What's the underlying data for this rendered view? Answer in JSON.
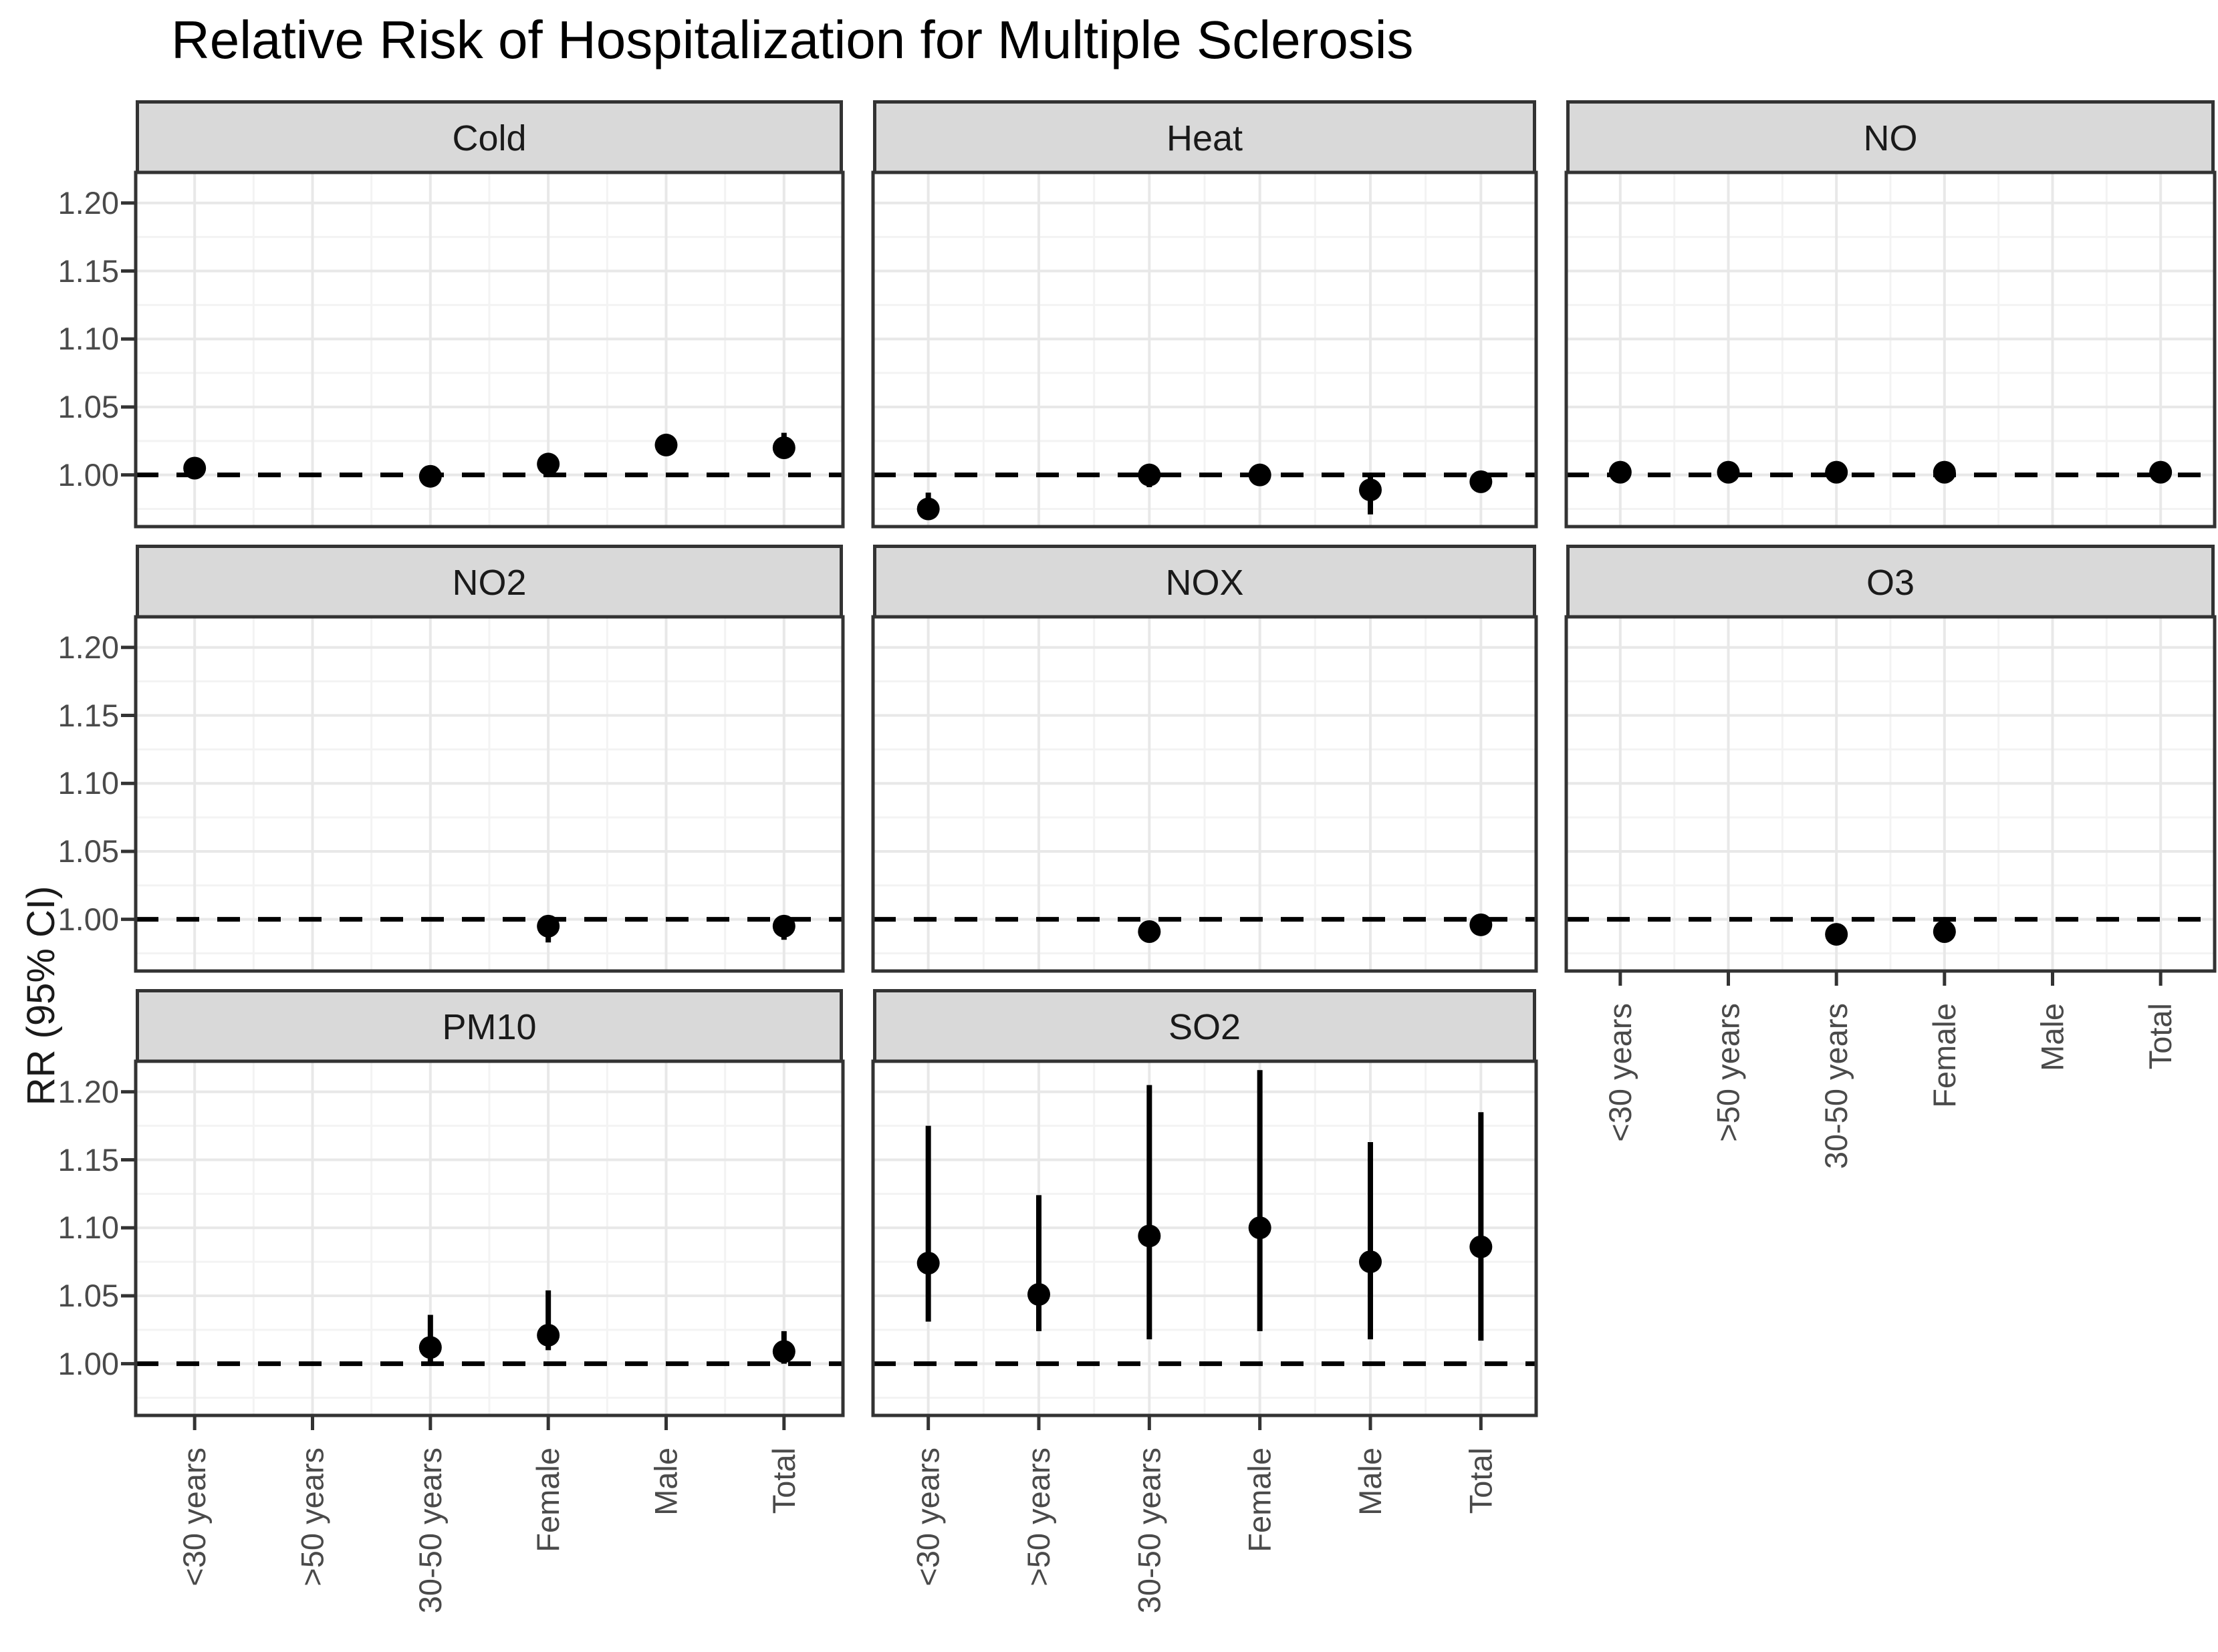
{
  "title": "Relative Risk of Hospitalization for Multiple Sclerosis",
  "ylabel": "RR (95% CI)",
  "colors": {
    "point": "#000000",
    "reference_line": "#000000",
    "strip_background": "#d9d9d9",
    "panel_border": "#333333",
    "grid_major": "#e8e8e8",
    "grid_minor": "#f3f3f3",
    "axis_text": "#4a4a4a",
    "title_text": "#000000"
  },
  "chart_data": {
    "type": "scatter",
    "subtype": "faceted-forest-plot",
    "title": "Relative Risk of Hospitalization for Multiple Sclerosis",
    "xlabel": "",
    "ylabel": "RR (95% CI)",
    "legend": "none",
    "grid": "major+minor",
    "reference_line_y": 1.0,
    "reference_line_style": "dashed",
    "ylim": [
      0.962,
      1.2225
    ],
    "yticks": [
      1.0,
      1.05,
      1.1,
      1.15,
      1.2
    ],
    "ytick_labels": [
      "1.00",
      "1.05",
      "1.10",
      "1.15",
      "1.20"
    ],
    "categories": [
      "<30 years",
      ">50 years",
      "30-50 years",
      "Female",
      "Male",
      "Total"
    ],
    "facets": [
      {
        "label": "Cold",
        "points": [
          {
            "category": "<30 years",
            "rr": 1.005,
            "lo": 0.999,
            "hi": 1.011
          },
          {
            "category": "30-50 years",
            "rr": 0.999,
            "lo": 0.993,
            "hi": 1.005
          },
          {
            "category": "Female",
            "rr": 1.008,
            "lo": 1.002,
            "hi": 1.014
          },
          {
            "category": "Male",
            "rr": 1.022,
            "lo": 1.015,
            "hi": 1.029
          },
          {
            "category": "Total",
            "rr": 1.02,
            "lo": 1.012,
            "hi": 1.031
          }
        ]
      },
      {
        "label": "Heat",
        "points": [
          {
            "category": "<30 years",
            "rr": 0.975,
            "lo": 0.967,
            "hi": 0.987
          },
          {
            "category": "30-50 years",
            "rr": 1.0,
            "lo": 0.991,
            "hi": 1.006
          },
          {
            "category": "Female",
            "rr": 1.0,
            "lo": 0.994,
            "hi": 1.006
          },
          {
            "category": "Male",
            "rr": 0.989,
            "lo": 0.971,
            "hi": 1.0
          },
          {
            "category": "Total",
            "rr": 0.995,
            "lo": 0.988,
            "hi": 1.001
          }
        ]
      },
      {
        "label": "NO",
        "points": [
          {
            "category": "<30 years",
            "rr": 1.002,
            "lo": 0.999,
            "hi": 1.005
          },
          {
            "category": ">50 years",
            "rr": 1.002,
            "lo": 0.999,
            "hi": 1.005
          },
          {
            "category": "30-50 years",
            "rr": 1.002,
            "lo": 0.999,
            "hi": 1.005
          },
          {
            "category": "Female",
            "rr": 1.002,
            "lo": 0.999,
            "hi": 1.005
          },
          {
            "category": "Total",
            "rr": 1.002,
            "lo": 0.999,
            "hi": 1.005
          }
        ]
      },
      {
        "label": "NO2",
        "points": [
          {
            "category": "Female",
            "rr": 0.995,
            "lo": 0.983,
            "hi": 1.002
          },
          {
            "category": "Total",
            "rr": 0.995,
            "lo": 0.985,
            "hi": 1.001
          }
        ]
      },
      {
        "label": "NOX",
        "points": [
          {
            "category": "30-50 years",
            "rr": 0.991,
            "lo": 0.984,
            "hi": 0.999
          },
          {
            "category": "Total",
            "rr": 0.996,
            "lo": 0.991,
            "hi": 1.002
          }
        ]
      },
      {
        "label": "O3",
        "points": [
          {
            "category": "30-50 years",
            "rr": 0.989,
            "lo": 0.982,
            "hi": 0.996
          },
          {
            "category": "Female",
            "rr": 0.991,
            "lo": 0.984,
            "hi": 0.997
          }
        ]
      },
      {
        "label": "PM10",
        "points": [
          {
            "category": "30-50 years",
            "rr": 1.012,
            "lo": 1.0,
            "hi": 1.036
          },
          {
            "category": "Female",
            "rr": 1.021,
            "lo": 1.01,
            "hi": 1.054
          },
          {
            "category": "Total",
            "rr": 1.009,
            "lo": 1.0,
            "hi": 1.024
          }
        ]
      },
      {
        "label": "SO2",
        "points": [
          {
            "category": "<30 years",
            "rr": 1.074,
            "lo": 1.031,
            "hi": 1.175
          },
          {
            "category": ">50 years",
            "rr": 1.051,
            "lo": 1.024,
            "hi": 1.124
          },
          {
            "category": "30-50 years",
            "rr": 1.094,
            "lo": 1.018,
            "hi": 1.205
          },
          {
            "category": "Female",
            "rr": 1.1,
            "lo": 1.024,
            "hi": 1.216
          },
          {
            "category": "Male",
            "rr": 1.075,
            "lo": 1.018,
            "hi": 1.163
          },
          {
            "category": "Total",
            "rr": 1.086,
            "lo": 1.017,
            "hi": 1.185
          }
        ]
      }
    ]
  }
}
